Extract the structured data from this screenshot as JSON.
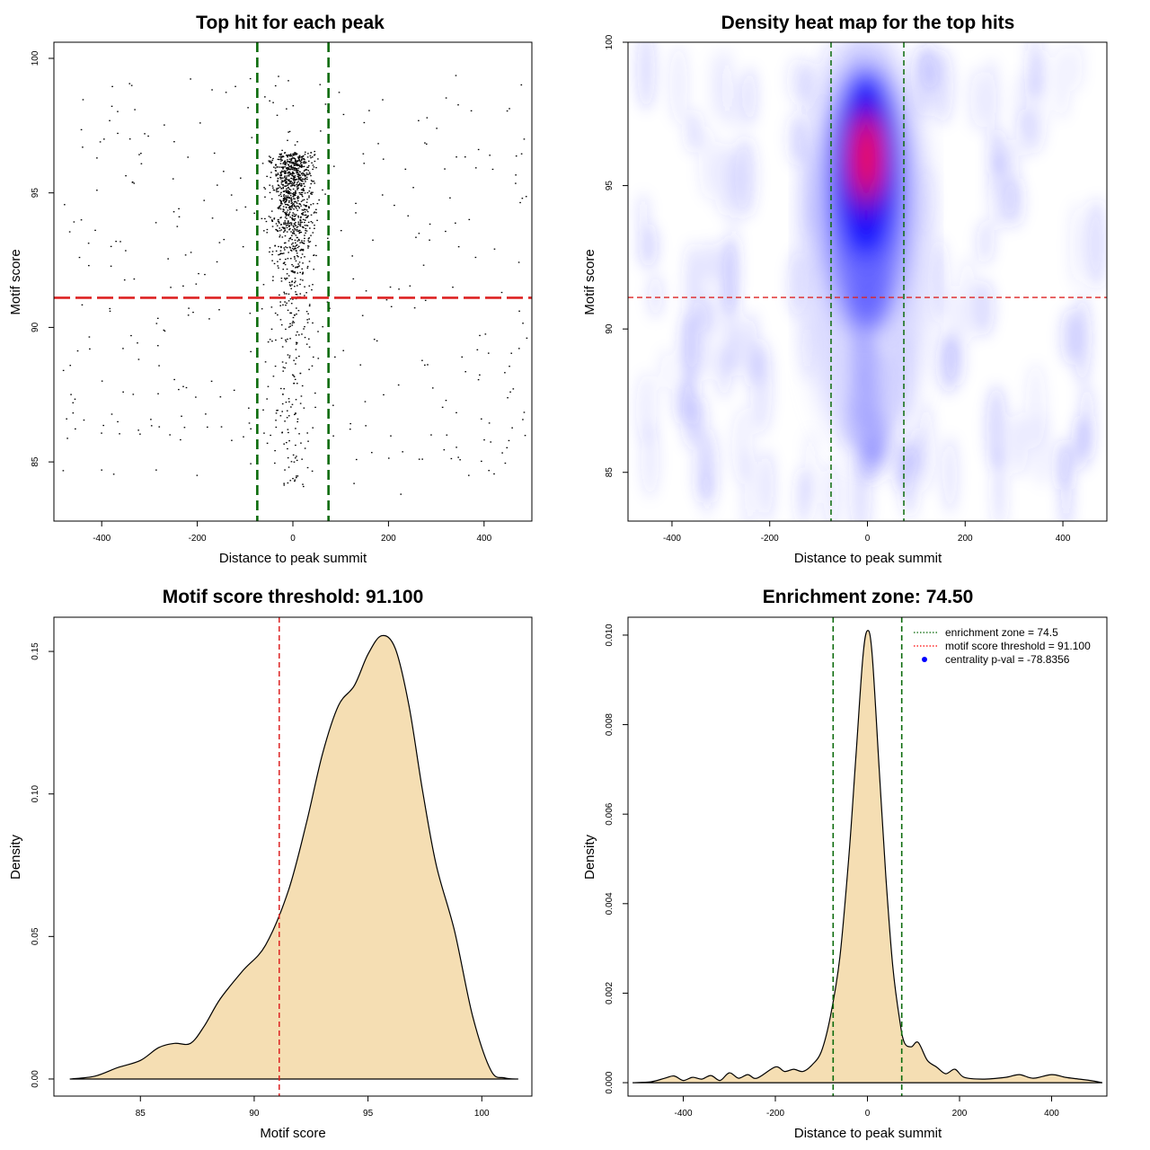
{
  "chart_data": [
    {
      "type": "scatter",
      "title": "Top hit for each peak",
      "xlabel": "Distance to peak summit",
      "ylabel": "Motif score",
      "xlim": [
        -500,
        500
      ],
      "ylim": [
        82.8,
        100.6
      ],
      "xticks": [
        "-400",
        "-200",
        "0",
        "200",
        "400"
      ],
      "yticks": [
        "85",
        "90",
        "95",
        "100"
      ],
      "points_described": "about 1500 top hits; dense band within |x| < 75 and motif score 87-100, sparse background across the full range",
      "sample_points": [
        [
          -480,
          88.4
        ],
        [
          -460,
          87.2
        ],
        [
          -440,
          96.7
        ],
        [
          -425,
          89.2
        ],
        [
          -410,
          95.1
        ],
        [
          -400,
          84.7
        ],
        [
          -383,
          90.7
        ],
        [
          -370,
          93.2
        ],
        [
          -355,
          87.6
        ],
        [
          -332,
          91.8
        ],
        [
          -310,
          97.2
        ],
        [
          -286,
          84.7
        ],
        [
          -270,
          89.9
        ],
        [
          -249,
          94.3
        ],
        [
          -233,
          86.7
        ],
        [
          -211,
          91.1
        ],
        [
          -194,
          97.6
        ],
        [
          -170,
          88.0
        ],
        [
          -145,
          95.8
        ],
        [
          -128,
          85.8
        ],
        [
          -104,
          93.0
        ],
        [
          -88,
          89.1
        ],
        [
          -60,
          95.2
        ],
        [
          -30,
          92.7
        ],
        [
          0,
          96.1
        ],
        [
          12,
          94.5
        ],
        [
          35,
          90.8
        ],
        [
          58,
          97.3
        ],
        [
          88,
          88.9
        ],
        [
          101,
          93.6
        ],
        [
          128,
          84.2
        ],
        [
          149,
          96.1
        ],
        [
          176,
          89.5
        ],
        [
          204,
          91.5
        ],
        [
          226,
          83.8
        ],
        [
          252,
          95.2
        ],
        [
          276,
          88.6
        ],
        [
          301,
          97.4
        ],
        [
          322,
          86.0
        ],
        [
          347,
          93.0
        ],
        [
          368,
          84.5
        ],
        [
          391,
          89.7
        ],
        [
          412,
          96.4
        ],
        [
          437,
          91.3
        ],
        [
          455,
          87.6
        ],
        [
          480,
          94.8
        ]
      ],
      "vlines": [
        -74.5,
        74.5
      ],
      "hline": 91.1
    },
    {
      "type": "heatmap",
      "title": "Density heat map for the top hits",
      "xlabel": "Distance to peak summit",
      "ylabel": "Motif score",
      "xlim": [
        -490,
        490
      ],
      "ylim": [
        83.3,
        100
      ],
      "xticks": [
        "-400",
        "-200",
        "0",
        "200",
        "400"
      ],
      "yticks": [
        "85",
        "90",
        "95",
        "100"
      ],
      "peak": {
        "x": 0,
        "y": 96
      },
      "colormap": [
        "#ffffff",
        "#0000ff",
        "#ff0000"
      ],
      "vlines": [
        -74.5,
        74.5
      ],
      "hline": 91.1
    },
    {
      "type": "area",
      "title": "Motif score threshold: 91.100",
      "xlabel": "Motif score",
      "ylabel": "Density",
      "xlim": [
        81.2,
        102.2
      ],
      "ylim": [
        -0.006,
        0.162
      ],
      "xticks": [
        "85",
        "90",
        "95",
        "100"
      ],
      "yticks": [
        "0.00",
        "0.05",
        "0.10",
        "0.15"
      ],
      "x": [
        81.9,
        83,
        84,
        85,
        85.8,
        86.5,
        87.2,
        87.8,
        88.5,
        89.5,
        90.5,
        91.5,
        92.3,
        93.0,
        93.7,
        94.4,
        95.0,
        95.6,
        96.2,
        96.8,
        97.4,
        98.0,
        98.8,
        99.6,
        100.4,
        101.0,
        101.6
      ],
      "values": [
        0.0,
        0.001,
        0.004,
        0.0065,
        0.011,
        0.0125,
        0.0125,
        0.0185,
        0.028,
        0.038,
        0.047,
        0.066,
        0.09,
        0.114,
        0.131,
        0.138,
        0.149,
        0.1555,
        0.151,
        0.131,
        0.101,
        0.075,
        0.052,
        0.022,
        0.003,
        0.0004,
        0.0
      ],
      "vline": 91.1,
      "fill": "#f5deb3"
    },
    {
      "type": "area",
      "title": "Enrichment zone: 74.50",
      "xlabel": "Distance to peak summit",
      "ylabel": "Density",
      "xlim": [
        -520,
        520
      ],
      "ylim": [
        -0.0003,
        0.0104
      ],
      "xticks": [
        "-400",
        "-200",
        "0",
        "200",
        "400"
      ],
      "yticks": [
        "0.000",
        "0.002",
        "0.004",
        "0.006",
        "0.008",
        "0.010"
      ],
      "x": [
        -510,
        -470,
        -440,
        -420,
        -400,
        -380,
        -360,
        -340,
        -320,
        -300,
        -280,
        -260,
        -240,
        -200,
        -180,
        -160,
        -140,
        -120,
        -100,
        -80,
        -60,
        -40,
        -25,
        -10,
        0,
        10,
        25,
        40,
        55,
        70,
        80,
        95,
        110,
        130,
        150,
        170,
        190,
        210,
        250,
        300,
        330,
        360,
        400,
        430,
        460,
        490,
        510
      ],
      "values": [
        0.0,
        2e-05,
        0.0001,
        0.00015,
        5e-05,
        0.00012,
        8e-05,
        0.00016,
        5e-05,
        0.00022,
        0.0001,
        0.00018,
        0.0001,
        0.00035,
        0.00025,
        0.0003,
        0.00025,
        0.0004,
        0.0007,
        0.0015,
        0.0028,
        0.0051,
        0.0073,
        0.0095,
        0.0101,
        0.0096,
        0.0071,
        0.0046,
        0.0026,
        0.0014,
        0.0009,
        0.0008,
        0.0009,
        0.0005,
        0.00035,
        0.0002,
        0.0003,
        0.00012,
        8e-05,
        0.00012,
        0.00018,
        0.0001,
        0.00018,
        0.00012,
        8e-05,
        4e-05,
        0.0
      ],
      "vlines": [
        -74.5,
        74.5
      ],
      "fill": "#f5deb3",
      "legend": [
        {
          "label": "enrichment zone = 74.5",
          "style": "dotted",
          "color": "#006400"
        },
        {
          "label": "motif score threshold = 91.100",
          "style": "dotted",
          "color": "#ff0000"
        },
        {
          "label": "centrality p-val = -78.8356",
          "style": "point",
          "color": "#0000ff"
        }
      ],
      "legend_position": "top-right"
    }
  ],
  "colors": {
    "threshold_line": "#dd2222",
    "zone_line": "#0b6b0b",
    "density_fill": "#f5deb3"
  }
}
